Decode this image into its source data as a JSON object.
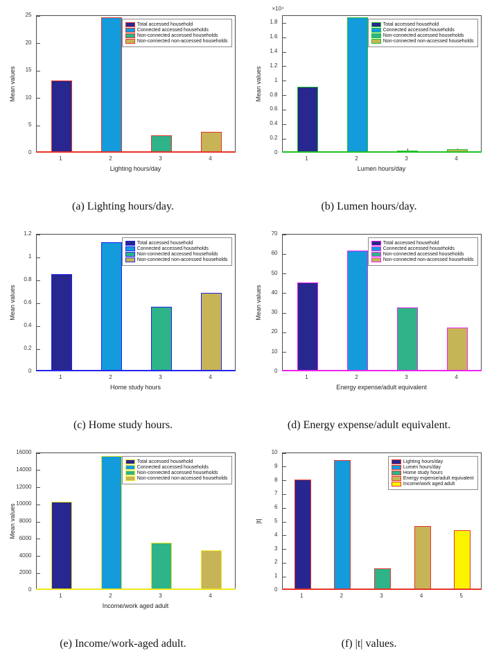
{
  "figure": {
    "captions": [
      "(a) Lighting hours/day.",
      "(b) Lumen hours/day.",
      "(c) Home study hours.",
      "(d) Energy expense/adult equivalent.",
      "(e) Income/work-aged adult.",
      "(f) |t| values."
    ]
  },
  "chart_data": [
    {
      "id": "a",
      "type": "bar",
      "title": "",
      "xlabel": "Lighting hours/day",
      "ylabel": "Mean values",
      "categories": [
        "1",
        "2",
        "3",
        "4"
      ],
      "values": [
        13,
        24.5,
        3,
        3.6
      ],
      "ylim": [
        0,
        25
      ],
      "yticks": [
        0,
        5,
        10,
        15,
        20,
        25
      ],
      "ytick_labels": [
        "0",
        "5",
        "10",
        "15",
        "20",
        "25"
      ],
      "exp_label": "",
      "bar_colors": [
        "#27278f",
        "#139bdc",
        "#2fb388",
        "#c6b457"
      ],
      "edge_color": "#e63329",
      "legend": [
        "Total accessed household",
        "Connected accessed households",
        "Non-connected accessed households",
        "Non-connected non-accessed households"
      ],
      "legend_position": "top-right",
      "grid": false
    },
    {
      "id": "b",
      "type": "bar",
      "title": "",
      "xlabel": "Lumen hours/day",
      "ylabel": "Mean values",
      "categories": [
        "1",
        "2",
        "3",
        "4"
      ],
      "values": [
        9000,
        18600,
        200,
        350
      ],
      "ylim": [
        0,
        19000
      ],
      "yticks": [
        0,
        2000,
        4000,
        6000,
        8000,
        10000,
        12000,
        14000,
        16000,
        18000
      ],
      "ytick_labels": [
        "0",
        "0.2",
        "0.4",
        "0.6",
        "0.8",
        "1",
        "1.2",
        "1.4",
        "1.6",
        "1.8"
      ],
      "exp_label": "×10⁴",
      "bar_colors": [
        "#27278f",
        "#139bdc",
        "#2fb388",
        "#c6b457"
      ],
      "edge_color": "#1fc127",
      "legend": [
        "Total accessed household",
        "Connected accessed households",
        "Non-connected accessed households",
        "Non-connected non-accessed households"
      ],
      "legend_position": "top-right",
      "grid": false
    },
    {
      "id": "c",
      "type": "bar",
      "title": "",
      "xlabel": "Home study hours",
      "ylabel": "Mean values",
      "categories": [
        "1",
        "2",
        "3",
        "4"
      ],
      "values": [
        0.84,
        1.12,
        0.56,
        0.68
      ],
      "ylim": [
        0,
        1.2
      ],
      "yticks": [
        0,
        0.2,
        0.4,
        0.6,
        0.8,
        1,
        1.2
      ],
      "ytick_labels": [
        "0",
        "0.2",
        "0.4",
        "0.6",
        "0.8",
        "1",
        "1.2"
      ],
      "exp_label": "",
      "bar_colors": [
        "#27278f",
        "#139bdc",
        "#2fb388",
        "#c6b457"
      ],
      "edge_color": "#2222ee",
      "legend": [
        "Total accessed household",
        "Connected accessed households",
        "Non-connected accessed households",
        "Non-connected non-accessed households"
      ],
      "legend_position": "top-right",
      "grid": false
    },
    {
      "id": "d",
      "type": "bar",
      "title": "",
      "xlabel": "Energy expense/adult equivalent",
      "ylabel": "Mean values",
      "categories": [
        "1",
        "2",
        "3",
        "4"
      ],
      "values": [
        45,
        61,
        32,
        22
      ],
      "ylim": [
        0,
        70
      ],
      "yticks": [
        0,
        10,
        20,
        30,
        40,
        50,
        60,
        70
      ],
      "ytick_labels": [
        "0",
        "10",
        "20",
        "30",
        "40",
        "50",
        "60",
        "70"
      ],
      "exp_label": "",
      "bar_colors": [
        "#27278f",
        "#139bdc",
        "#2fb388",
        "#c6b457"
      ],
      "edge_color": "#ee22ee",
      "legend": [
        "Total accessed household",
        "Connected accessed households",
        "Non-connected accessed households",
        "Non-connected non-accessed households"
      ],
      "legend_position": "top-right",
      "grid": false
    },
    {
      "id": "e",
      "type": "bar",
      "title": "",
      "xlabel": "Income/work aged adult",
      "ylabel": "Mean values",
      "categories": [
        "1",
        "2",
        "3",
        "4"
      ],
      "values": [
        10200,
        15500,
        5400,
        4500
      ],
      "ylim": [
        0,
        16000
      ],
      "yticks": [
        0,
        2000,
        4000,
        6000,
        8000,
        10000,
        12000,
        14000,
        16000
      ],
      "ytick_labels": [
        "0",
        "2000",
        "4000",
        "6000",
        "8000",
        "10000",
        "12000",
        "14000",
        "16000"
      ],
      "exp_label": "",
      "bar_colors": [
        "#27278f",
        "#139bdc",
        "#2fb388",
        "#c6b457"
      ],
      "edge_color": "#f0e71c",
      "legend": [
        "Total accessed household",
        "Connected accessed households",
        "Non-connected accessed households",
        "Non-connected non-accessed households"
      ],
      "legend_position": "top-right",
      "grid": false
    },
    {
      "id": "f",
      "type": "bar",
      "title": "",
      "xlabel": "",
      "ylabel": "|t|",
      "categories": [
        "1",
        "2",
        "3",
        "4",
        "5"
      ],
      "values": [
        8,
        9.4,
        1.5,
        4.6,
        4.3
      ],
      "ylim": [
        0,
        10
      ],
      "yticks": [
        0,
        1,
        2,
        3,
        4,
        5,
        6,
        7,
        8,
        9,
        10
      ],
      "ytick_labels": [
        "0",
        "1",
        "2",
        "3",
        "4",
        "5",
        "6",
        "7",
        "8",
        "9",
        "10"
      ],
      "exp_label": "",
      "bar_colors": [
        "#27278f",
        "#139bdc",
        "#2fb388",
        "#c6b457",
        "#fbf300"
      ],
      "edge_color": "#e63329",
      "legend": [
        "Lighting hours/day",
        "Lumen hours/day",
        "Home study hours",
        "Energy expense/adult equivalent",
        "Income/work aged adult"
      ],
      "legend_position": "top-right",
      "grid": false
    }
  ]
}
